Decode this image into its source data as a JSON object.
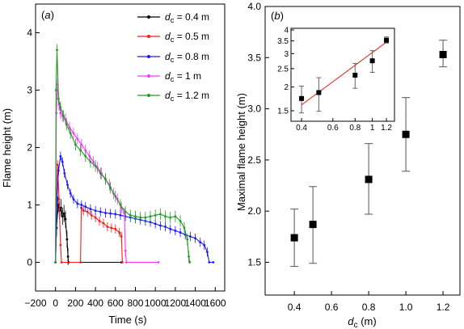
{
  "chart_data": [
    {
      "type": "line",
      "panel_label": "(a)",
      "xlabel": "Time (s)",
      "ylabel": "Flame height (m)",
      "xlim": [
        -200,
        1695
      ],
      "ylim": [
        -0.5,
        4.5
      ],
      "xticks": [
        -200,
        0,
        200,
        400,
        600,
        800,
        1000,
        1200,
        1400,
        1600
      ],
      "xtick_labels": [
        "−200",
        "0",
        "200",
        "400",
        "600",
        "800",
        "1000",
        "1200",
        "1400",
        "1600"
      ],
      "yticks": [
        0,
        1,
        2,
        3,
        4
      ],
      "ytick_labels": [
        "0",
        "1",
        "2",
        "3",
        "4"
      ],
      "grid": false,
      "legend_position": "top-right",
      "series": [
        {
          "name": "d_c = 0.4 m",
          "color": "#000000",
          "yerr": 0.15,
          "x": [
            0,
            10,
            25,
            40,
            55,
            70,
            85,
            100,
            115,
            125,
            130,
            660
          ],
          "y": [
            0,
            0.6,
            1.0,
            0.9,
            0.95,
            0.8,
            0.85,
            0.75,
            0.4,
            0.1,
            0,
            0
          ]
        },
        {
          "name": "d_c = 0.5 m",
          "color": "#ff1a1a",
          "yerr": 0.08,
          "x": [
            0,
            10,
            20,
            35,
            50,
            60,
            250,
            258,
            280,
            320,
            360,
            400,
            440,
            480,
            520,
            560,
            600,
            640,
            660,
            670
          ],
          "y": [
            0,
            1.2,
            1.7,
            1.1,
            0.3,
            0,
            0,
            0.95,
            0.9,
            0.88,
            0.82,
            0.78,
            0.72,
            0.68,
            0.62,
            0.6,
            0.58,
            0.52,
            0.45,
            0
          ]
        },
        {
          "name": "d_c = 0.8 m",
          "color": "#1a1aff",
          "yerr": 0.08,
          "x": [
            0,
            15,
            30,
            50,
            70,
            90,
            120,
            150,
            180,
            220,
            260,
            300,
            350,
            400,
            450,
            500,
            550,
            600,
            650,
            700,
            750,
            800,
            850,
            900,
            950,
            1000,
            1050,
            1100,
            1150,
            1200,
            1250,
            1300,
            1350,
            1400,
            1450,
            1490,
            1520,
            1540,
            1580
          ],
          "y": [
            0,
            1.1,
            1.6,
            1.85,
            1.75,
            1.55,
            1.35,
            1.2,
            1.1,
            1.02,
            1.0,
            0.97,
            0.93,
            0.9,
            0.88,
            0.86,
            0.85,
            0.84,
            0.82,
            0.8,
            0.78,
            0.76,
            0.74,
            0.72,
            0.7,
            0.67,
            0.64,
            0.62,
            0.58,
            0.55,
            0.52,
            0.48,
            0.45,
            0.42,
            0.35,
            0.3,
            0.18,
            0,
            0
          ]
        },
        {
          "name": "d_c = 1 m",
          "color": "#ff33ff",
          "yerr": 0.1,
          "x": [
            0,
            8,
            20,
            35,
            50,
            70,
            100,
            140,
            180,
            220,
            260,
            300,
            340,
            380,
            420,
            460,
            500,
            540,
            580,
            620,
            660,
            690,
            700,
            710,
            1030
          ],
          "y": [
            0,
            2.6,
            3.1,
            2.75,
            2.6,
            2.55,
            2.5,
            2.35,
            2.25,
            2.15,
            2.05,
            1.95,
            1.85,
            1.75,
            1.65,
            1.55,
            1.45,
            1.35,
            1.2,
            1.1,
            0.95,
            0.85,
            0.2,
            0,
            0
          ]
        },
        {
          "name": "d_c = 1.2 m",
          "color": "#239b23",
          "yerr": 0.1,
          "x": [
            0,
            5,
            15,
            30,
            50,
            80,
            110,
            150,
            200,
            250,
            300,
            350,
            400,
            450,
            500,
            550,
            600,
            650,
            700,
            750,
            800,
            850,
            900,
            950,
            1000,
            1050,
            1100,
            1150,
            1200,
            1250,
            1290,
            1320,
            1335,
            1345
          ],
          "y": [
            0,
            3.0,
            3.7,
            2.85,
            2.7,
            2.55,
            2.4,
            2.25,
            2.05,
            1.95,
            1.85,
            1.75,
            1.68,
            1.55,
            1.45,
            1.3,
            1.15,
            1.0,
            0.88,
            0.82,
            0.8,
            0.78,
            0.78,
            0.8,
            0.82,
            0.84,
            0.8,
            0.78,
            0.8,
            0.72,
            0.6,
            0.4,
            0.1,
            0
          ]
        }
      ]
    },
    {
      "type": "scatter",
      "panel_label": "(b)",
      "xlabel": "d_c (m)",
      "ylabel": "Maximal flame height (m)",
      "xlim": [
        0.243,
        1.291
      ],
      "ylim": [
        1.18,
        4.0
      ],
      "xticks": [
        0.4,
        0.6,
        0.8,
        1.0,
        1.2
      ],
      "xtick_labels": [
        "0.4",
        "0.6",
        "0.8",
        "1.0",
        "1.2"
      ],
      "yticks": [
        1.5,
        2.0,
        2.5,
        3.0,
        3.5,
        4.0
      ],
      "ytick_labels": [
        "1.5",
        "2.0",
        "2.5",
        "3.0",
        "3.5",
        "4.0"
      ],
      "grid": false,
      "series": [
        {
          "color": "#000000",
          "marker": "square",
          "x": [
            0.4,
            0.5,
            0.8,
            1.0,
            1.2
          ],
          "y": [
            1.74,
            1.87,
            2.31,
            2.75,
            3.53
          ],
          "y_low": [
            1.46,
            1.49,
            1.97,
            2.39,
            3.41
          ],
          "y_high": [
            2.02,
            2.24,
            2.66,
            3.11,
            3.67
          ]
        }
      ],
      "inset": {
        "type": "scatter",
        "xscale": "log",
        "yscale": "log",
        "xlim": [
          0.349,
          1.332
        ],
        "ylim": [
          1.32,
          4.08
        ],
        "xticks": [
          0.4,
          0.6,
          0.8,
          1,
          1.2
        ],
        "xtick_labels": [
          "0.4",
          "0.6",
          "0.8",
          "1",
          "1.2"
        ],
        "yticks": [
          1.5,
          2,
          2.5,
          3,
          3.5,
          4
        ],
        "ytick_labels": [
          "1.5",
          "2",
          "2.5",
          "3",
          "3.5",
          "4"
        ],
        "fit_line": {
          "color": "#e8423a",
          "x": [
            0.4,
            1.2
          ],
          "y": [
            1.61,
            3.45
          ]
        }
      }
    }
  ]
}
